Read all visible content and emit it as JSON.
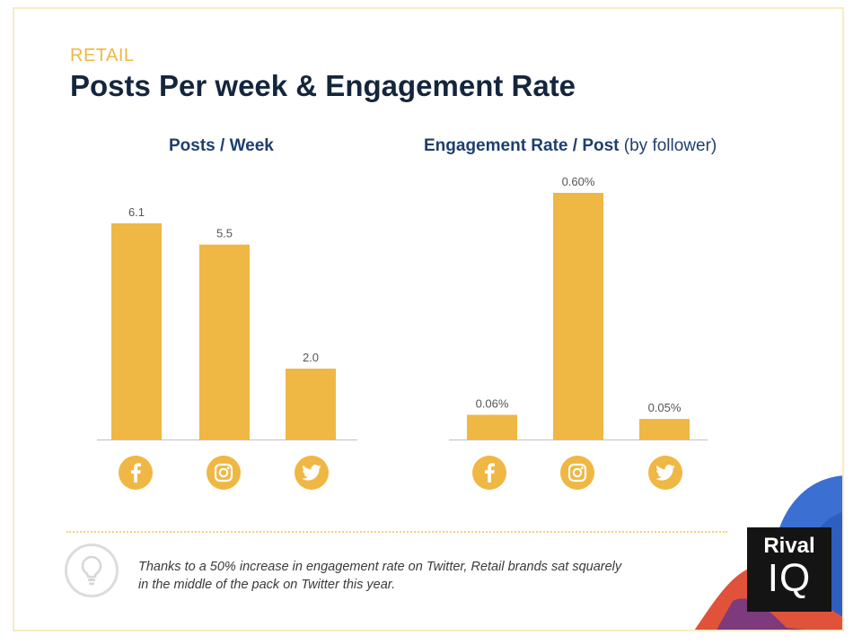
{
  "header": {
    "kicker": "RETAIL",
    "title": "Posts Per week & Engagement Rate"
  },
  "chart_data": [
    {
      "type": "bar",
      "title": "Posts / Week",
      "categories": [
        "Facebook",
        "Instagram",
        "Twitter"
      ],
      "values": [
        6.1,
        5.5,
        2.0
      ],
      "value_labels": [
        "6.1",
        "5.5",
        "2.0"
      ],
      "ylim": [
        0,
        6.1
      ],
      "grid": false
    },
    {
      "type": "bar",
      "title": "Engagement Rate / Post",
      "title_suffix": "(by follower)",
      "categories": [
        "Facebook",
        "Instagram",
        "Twitter"
      ],
      "values": [
        0.06,
        0.6,
        0.05
      ],
      "value_labels": [
        "0.06%",
        "0.60%",
        "0.05%"
      ],
      "ylim": [
        0,
        0.6
      ],
      "grid": false
    }
  ],
  "icons": [
    "facebook-icon",
    "instagram-icon",
    "twitter-icon"
  ],
  "footer": {
    "note_line1": "Thanks to a 50% increase in engagement rate on Twitter, Retail brands sat squarely",
    "note_line2": "in the middle of the pack on Twitter this year."
  },
  "logo": {
    "line1": "Rival",
    "line2": "IQ"
  },
  "colors": {
    "bar": "#efb743",
    "title": "#14263d",
    "chart_title": "#1e3f6d",
    "kicker": "#efb743"
  }
}
